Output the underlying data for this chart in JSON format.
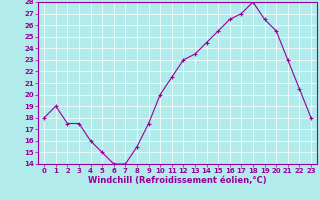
{
  "x": [
    0,
    1,
    2,
    3,
    4,
    5,
    6,
    7,
    8,
    9,
    10,
    11,
    12,
    13,
    14,
    15,
    16,
    17,
    18,
    19,
    20,
    21,
    22,
    23
  ],
  "y": [
    18,
    19,
    17.5,
    17.5,
    16,
    15,
    14,
    14,
    15.5,
    17.5,
    20,
    21.5,
    23,
    23.5,
    24.5,
    25.5,
    26.5,
    27,
    28,
    26.5,
    25.5,
    23,
    20.5,
    18
  ],
  "xlabel": "Windchill (Refroidissement éolien,°C)",
  "ylim": [
    14,
    28
  ],
  "xlim": [
    -0.5,
    23.5
  ],
  "yticks": [
    14,
    15,
    16,
    17,
    18,
    19,
    20,
    21,
    22,
    23,
    24,
    25,
    26,
    27,
    28
  ],
  "xticks": [
    0,
    1,
    2,
    3,
    4,
    5,
    6,
    7,
    8,
    9,
    10,
    11,
    12,
    13,
    14,
    15,
    16,
    17,
    18,
    19,
    20,
    21,
    22,
    23
  ],
  "line_color": "#990099",
  "marker": "+",
  "bg_color": "#b2ebeb",
  "grid_color": "#ffffff",
  "tick_label_fontsize": 5,
  "xlabel_fontsize": 6
}
